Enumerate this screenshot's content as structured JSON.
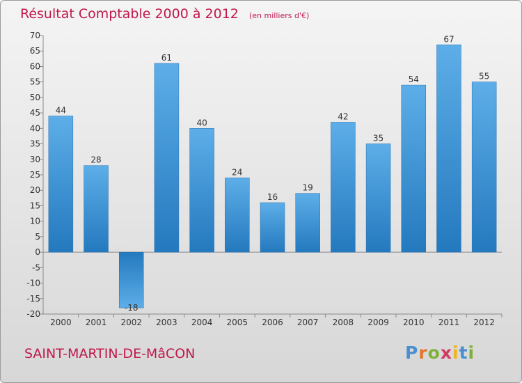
{
  "header": {
    "title": "Résultat Comptable 2000 à 2012",
    "unit": "(en milliers d'€)"
  },
  "footer": {
    "place": "SAINT-MARTIN-DE-MâCON",
    "logo_text": "Proxiti"
  },
  "colors": {
    "title": "#c0194b",
    "bar_light": "#5daee8",
    "bar_dark": "#2479be"
  },
  "chart_data": {
    "type": "bar",
    "title": "Résultat Comptable 2000 à 2012",
    "subtitle": "(en milliers d'€)",
    "categories": [
      "2000",
      "2001",
      "2002",
      "2003",
      "2004",
      "2005",
      "2006",
      "2007",
      "2008",
      "2009",
      "2010",
      "2011",
      "2012"
    ],
    "values": [
      44,
      28,
      -18,
      61,
      40,
      24,
      16,
      19,
      42,
      35,
      54,
      67,
      55
    ],
    "ylim": [
      -20,
      70
    ],
    "yticks": [
      70,
      65,
      60,
      55,
      50,
      45,
      40,
      35,
      30,
      25,
      20,
      15,
      10,
      5,
      0,
      -5,
      -10,
      -15,
      -20
    ],
    "grid": false,
    "data_labels": true
  }
}
